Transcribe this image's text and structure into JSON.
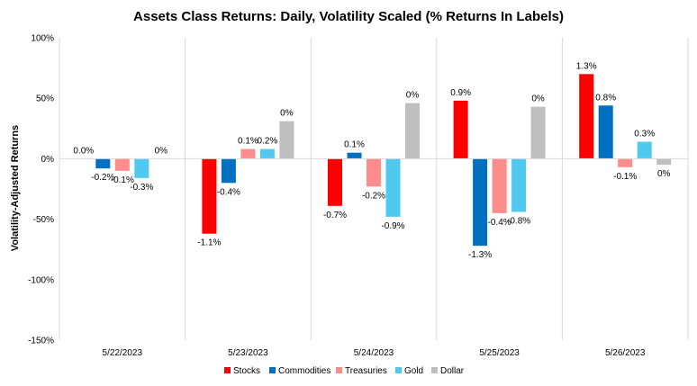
{
  "chart_data": {
    "type": "bar",
    "title": "Assets Class Returns: Daily, Volatility Scaled (% Returns In Labels)",
    "xlabel": "",
    "ylabel": "Volatility-Adjusted Returns",
    "ylim": [
      -150,
      100
    ],
    "yticks": [
      "100%",
      "50%",
      "0%",
      "-50%",
      "-100%",
      "-150%"
    ],
    "ytick_values": [
      100,
      50,
      0,
      -50,
      -100,
      -150
    ],
    "grid": "vertical category separators",
    "legend_position": "bottom",
    "categories": [
      "5/22/2023",
      "5/23/2023",
      "5/24/2023",
      "5/25/2023",
      "5/26/2023"
    ],
    "series": [
      {
        "name": "Stocks",
        "color": "#FF0000",
        "values": [
          0,
          -62,
          -39,
          48,
          70
        ],
        "labels": [
          "0.0%",
          "-1.1%",
          "-0.7%",
          "0.9%",
          "1.3%"
        ]
      },
      {
        "name": "Commodities",
        "color": "#0070C0",
        "values": [
          -8,
          -20,
          5,
          -72,
          44
        ],
        "labels": [
          "-0.2%",
          "-0.4%",
          "0.1%",
          "-1.3%",
          "0.8%"
        ]
      },
      {
        "name": "Treasuries",
        "color": "#FF8C8C",
        "values": [
          -10,
          8,
          -23,
          -45,
          -7
        ],
        "labels": [
          "-0.1%",
          "0.1%",
          "-0.2%",
          "-0.4%",
          "-0.1%"
        ]
      },
      {
        "name": "Gold",
        "color": "#4FC9F0",
        "values": [
          -16,
          8,
          -48,
          -44,
          14
        ],
        "labels": [
          "-0.3%",
          "0.2%",
          "-0.9%",
          "-0.8%",
          "0.3%"
        ]
      },
      {
        "name": "Dollar",
        "color": "#BFBFBF",
        "values": [
          0,
          31,
          46,
          43,
          -5
        ],
        "labels": [
          "0%",
          "0%",
          "0%",
          "0%",
          "0%"
        ]
      }
    ]
  }
}
